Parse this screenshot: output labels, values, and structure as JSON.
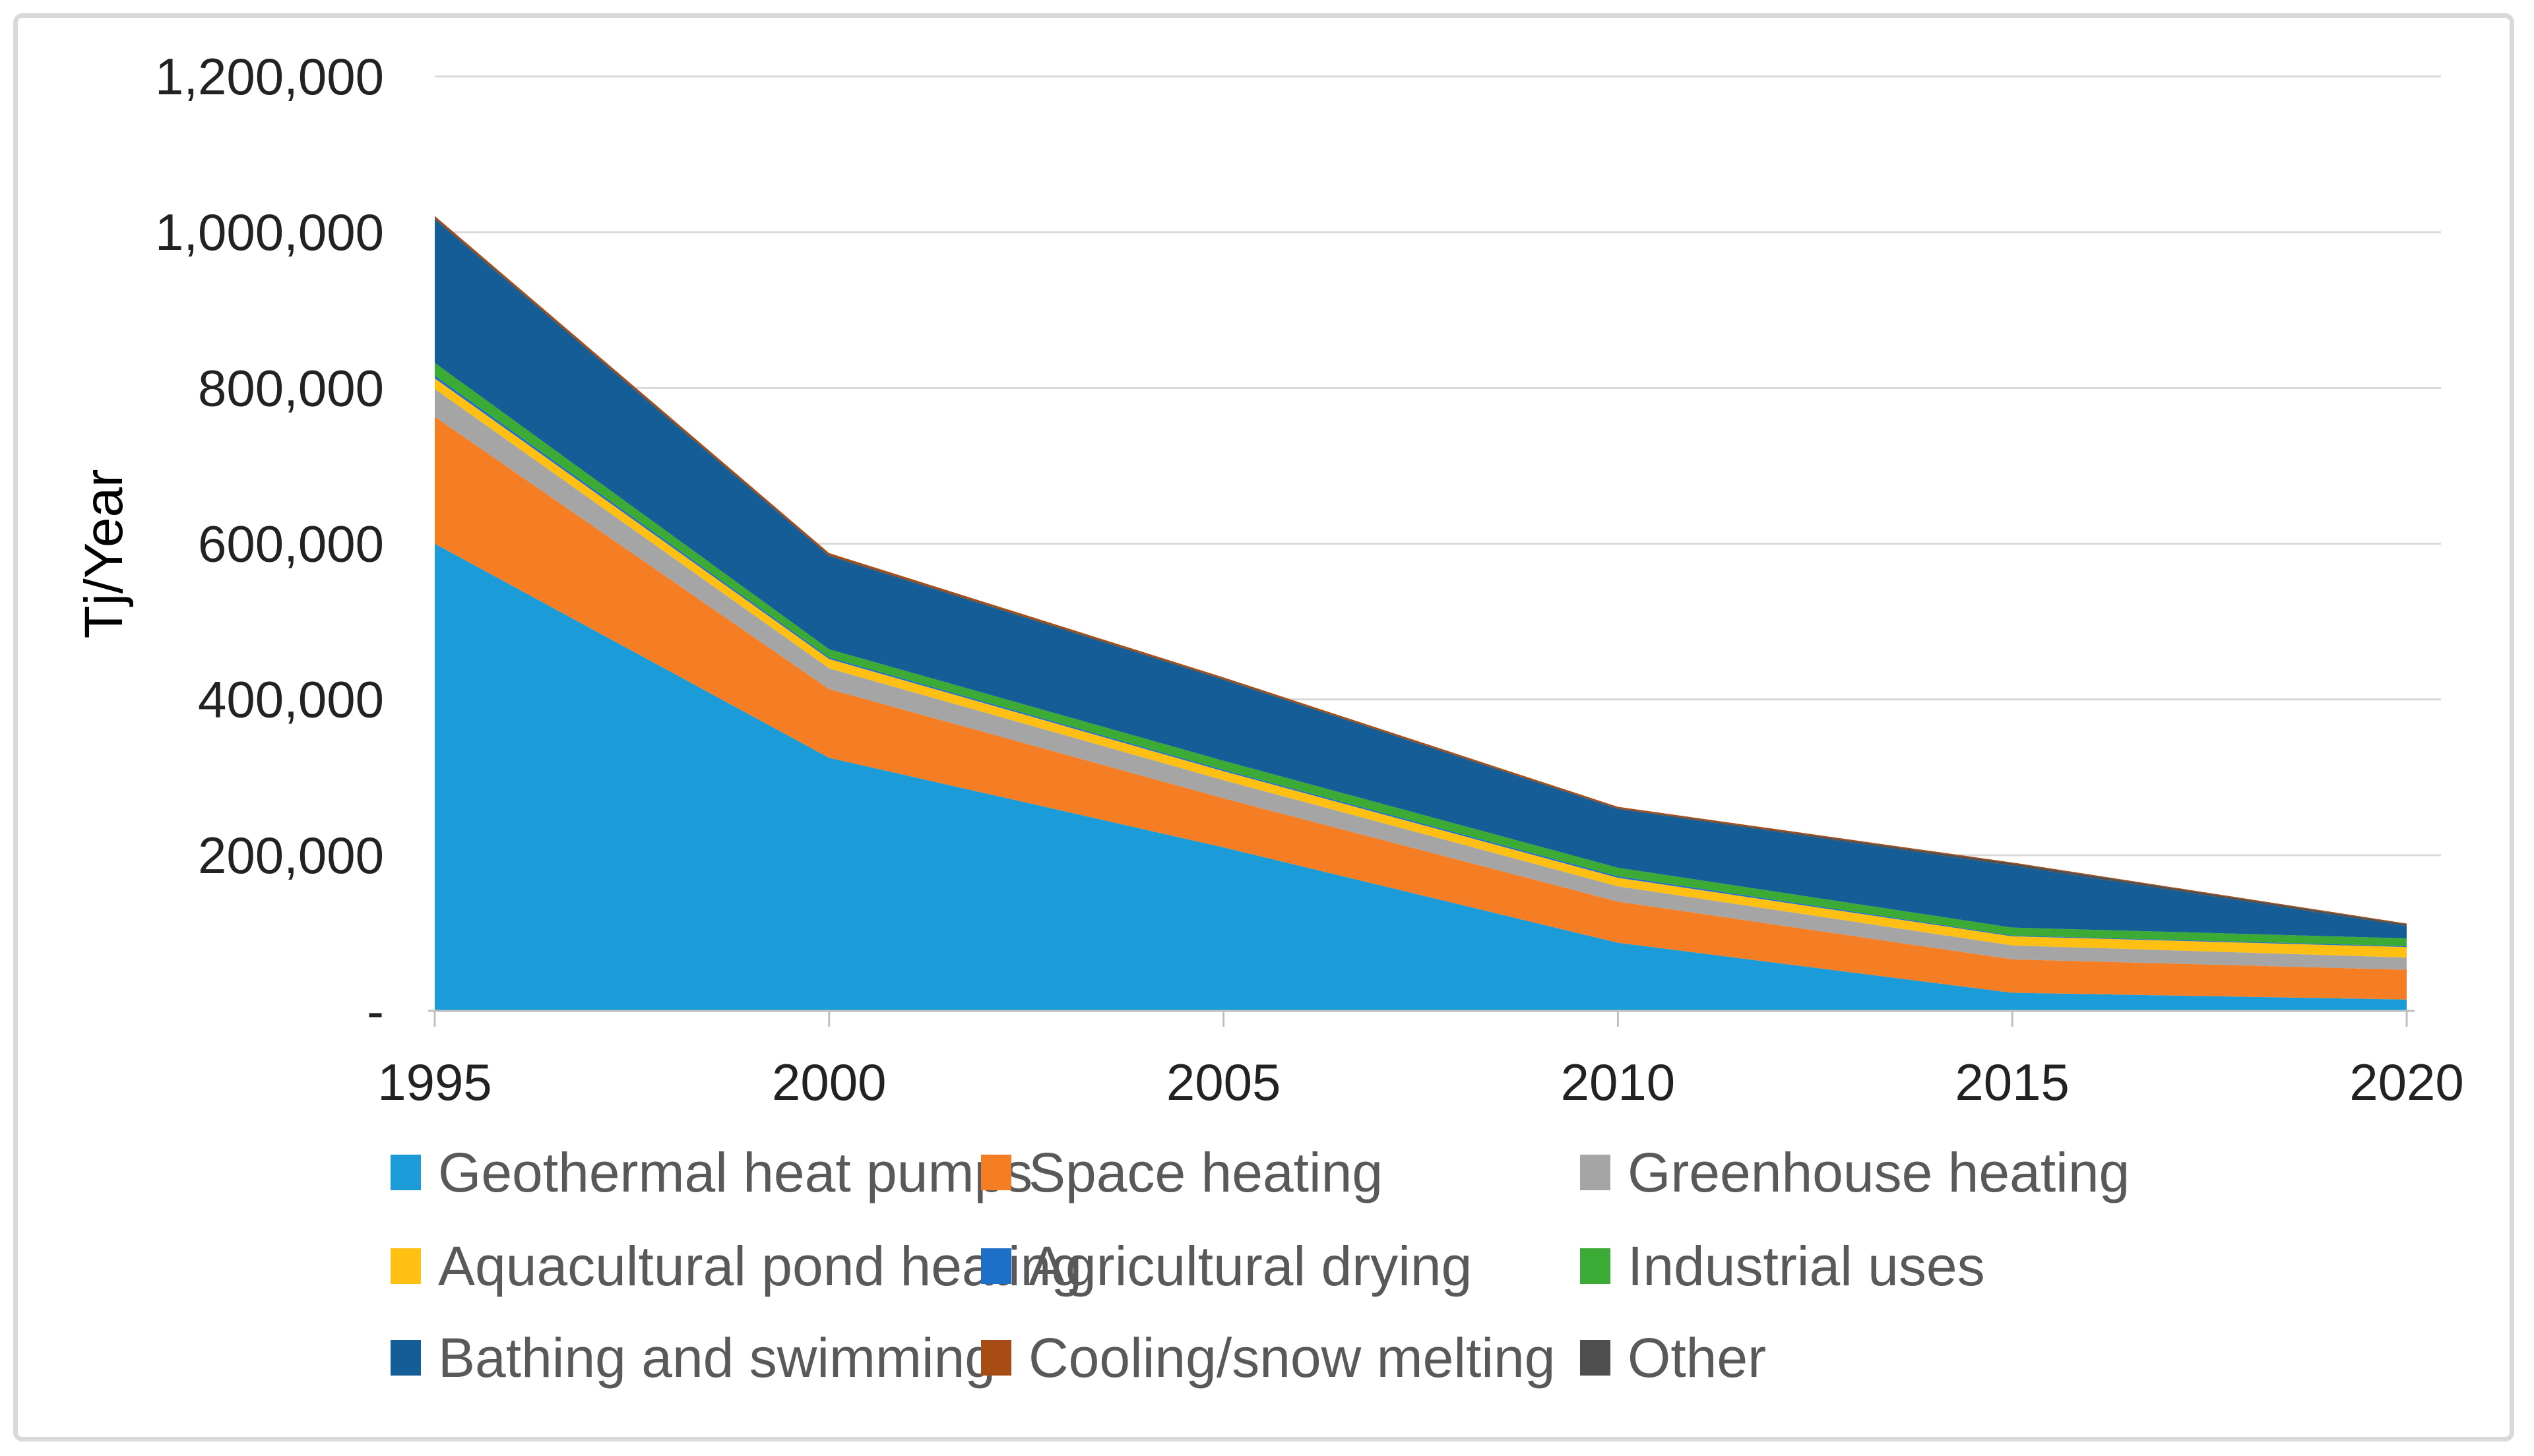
{
  "figure": {
    "y_axis_title": "Tj/Year",
    "background": "#ffffff",
    "border_color": "#D9D9D9",
    "gridline_color": "#D9D9D9",
    "axisline_color": "#BFBFBF",
    "tick_label_color": "#222222",
    "legend_text_color": "#595959"
  },
  "chart_data": {
    "type": "area",
    "stacked": true,
    "title": "",
    "xlabel": "",
    "ylabel": "Tj/Year",
    "grid": true,
    "legend_position": "bottom",
    "ylim": [
      0,
      1200000
    ],
    "x": [
      1995,
      2000,
      2005,
      2010,
      2015,
      2020
    ],
    "x_tick_labels": [
      "1995",
      "2000",
      "2005",
      "2010",
      "2015",
      "2020"
    ],
    "y_ticks": [
      {
        "label": "1,200,000",
        "value": 1200000
      },
      {
        "label": "1,000,000",
        "value": 1000000
      },
      {
        "label": "800,000",
        "value": 800000
      },
      {
        "label": "600,000",
        "value": 600000
      },
      {
        "label": "400,000",
        "value": 400000
      },
      {
        "label": "200,000",
        "value": 200000
      },
      {
        "label": "-",
        "value": 0
      }
    ],
    "series": [
      {
        "name": "Geothermal heat pumps",
        "color": "#1B9CD8",
        "values": [
          600000,
          325000,
          210000,
          87500,
          23300,
          14600
        ]
      },
      {
        "name": "Space heating",
        "color": "#F57E24",
        "values": [
          163000,
          88200,
          63000,
          52900,
          42900,
          38200
        ]
      },
      {
        "name": "Greenhouse heating",
        "color": "#A5A5A5",
        "values": [
          35800,
          26700,
          23300,
          19600,
          17900,
          15700
        ]
      },
      {
        "name": "Aquacultural pond heating",
        "color": "#FFC013",
        "values": [
          13600,
          12000,
          11500,
          11000,
          11700,
          13500
        ]
      },
      {
        "name": "Agricultural drying",
        "color": "#1E6FC8",
        "values": [
          3500,
          2000,
          1700,
          2000,
          1000,
          1100
        ]
      },
      {
        "name": "Industrial uses",
        "color": "#3BAB36",
        "values": [
          16400,
          10500,
          11700,
          10900,
          10200,
          10100
        ]
      },
      {
        "name": "Bathing and swimming",
        "color": "#145D96",
        "values": [
          184000,
          119400,
          104000,
          75300,
          79500,
          15700
        ]
      },
      {
        "name": "Cooling/snow melting",
        "color": "#A84C15",
        "values": [
          2600,
          2600,
          2100,
          1900,
          1100,
          1100
        ]
      },
      {
        "name": "Other",
        "color": "#4F4F4F",
        "values": [
          2000,
          1500,
          1000,
          1000,
          3000,
          2200
        ]
      }
    ],
    "stack_order": [
      0,
      1,
      2,
      3,
      4,
      5,
      6,
      8,
      7
    ]
  }
}
